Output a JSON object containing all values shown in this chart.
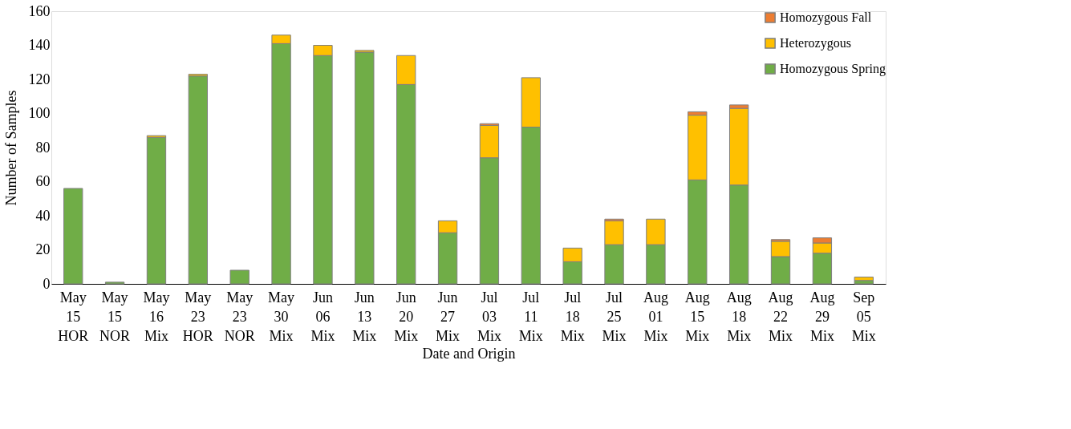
{
  "chart_data": {
    "type": "bar",
    "stacked": true,
    "xlabel": "Date and Origin",
    "ylabel": "Number of Samples",
    "categories": [
      "May 15 HOR",
      "May 15 NOR",
      "May 16 Mix",
      "May 23 HOR",
      "May 23 NOR",
      "May 30 Mix",
      "Jun 06 Mix",
      "Jun 13 Mix",
      "Jun 20 Mix",
      "Jun 27 Mix",
      "Jul 03 Mix",
      "Jul 11 Mix",
      "Jul 18 Mix",
      "Jul 25 Mix",
      "Aug 01 Mix",
      "Aug 15 Mix",
      "Aug 18 Mix",
      "Aug 22 Mix",
      "Aug 29 Mix",
      "Sep 05 Mix"
    ],
    "series": [
      {
        "name": "Homozygous Spring",
        "color": "#70ad47",
        "values": [
          56,
          1,
          86,
          122,
          8,
          141,
          134,
          136,
          117,
          30,
          74,
          92,
          13,
          23,
          23,
          61,
          58,
          16,
          18,
          2
        ]
      },
      {
        "name": "Heterozygous",
        "color": "#ffc000",
        "values": [
          null,
          null,
          1,
          1,
          null,
          5,
          6,
          1,
          17,
          7,
          19,
          29,
          8,
          14,
          15,
          38,
          45,
          9,
          6,
          2
        ]
      },
      {
        "name": "Homozygous Fall",
        "color": "#ed7d31",
        "values": [
          null,
          null,
          null,
          null,
          null,
          null,
          null,
          null,
          null,
          null,
          1,
          null,
          null,
          1,
          null,
          2,
          2,
          1,
          3,
          null
        ]
      }
    ],
    "ylim": [
      0,
      160
    ],
    "yticks": [
      0,
      20,
      40,
      60,
      80,
      100,
      120,
      140,
      160
    ],
    "grid": false,
    "legend": "top right"
  }
}
